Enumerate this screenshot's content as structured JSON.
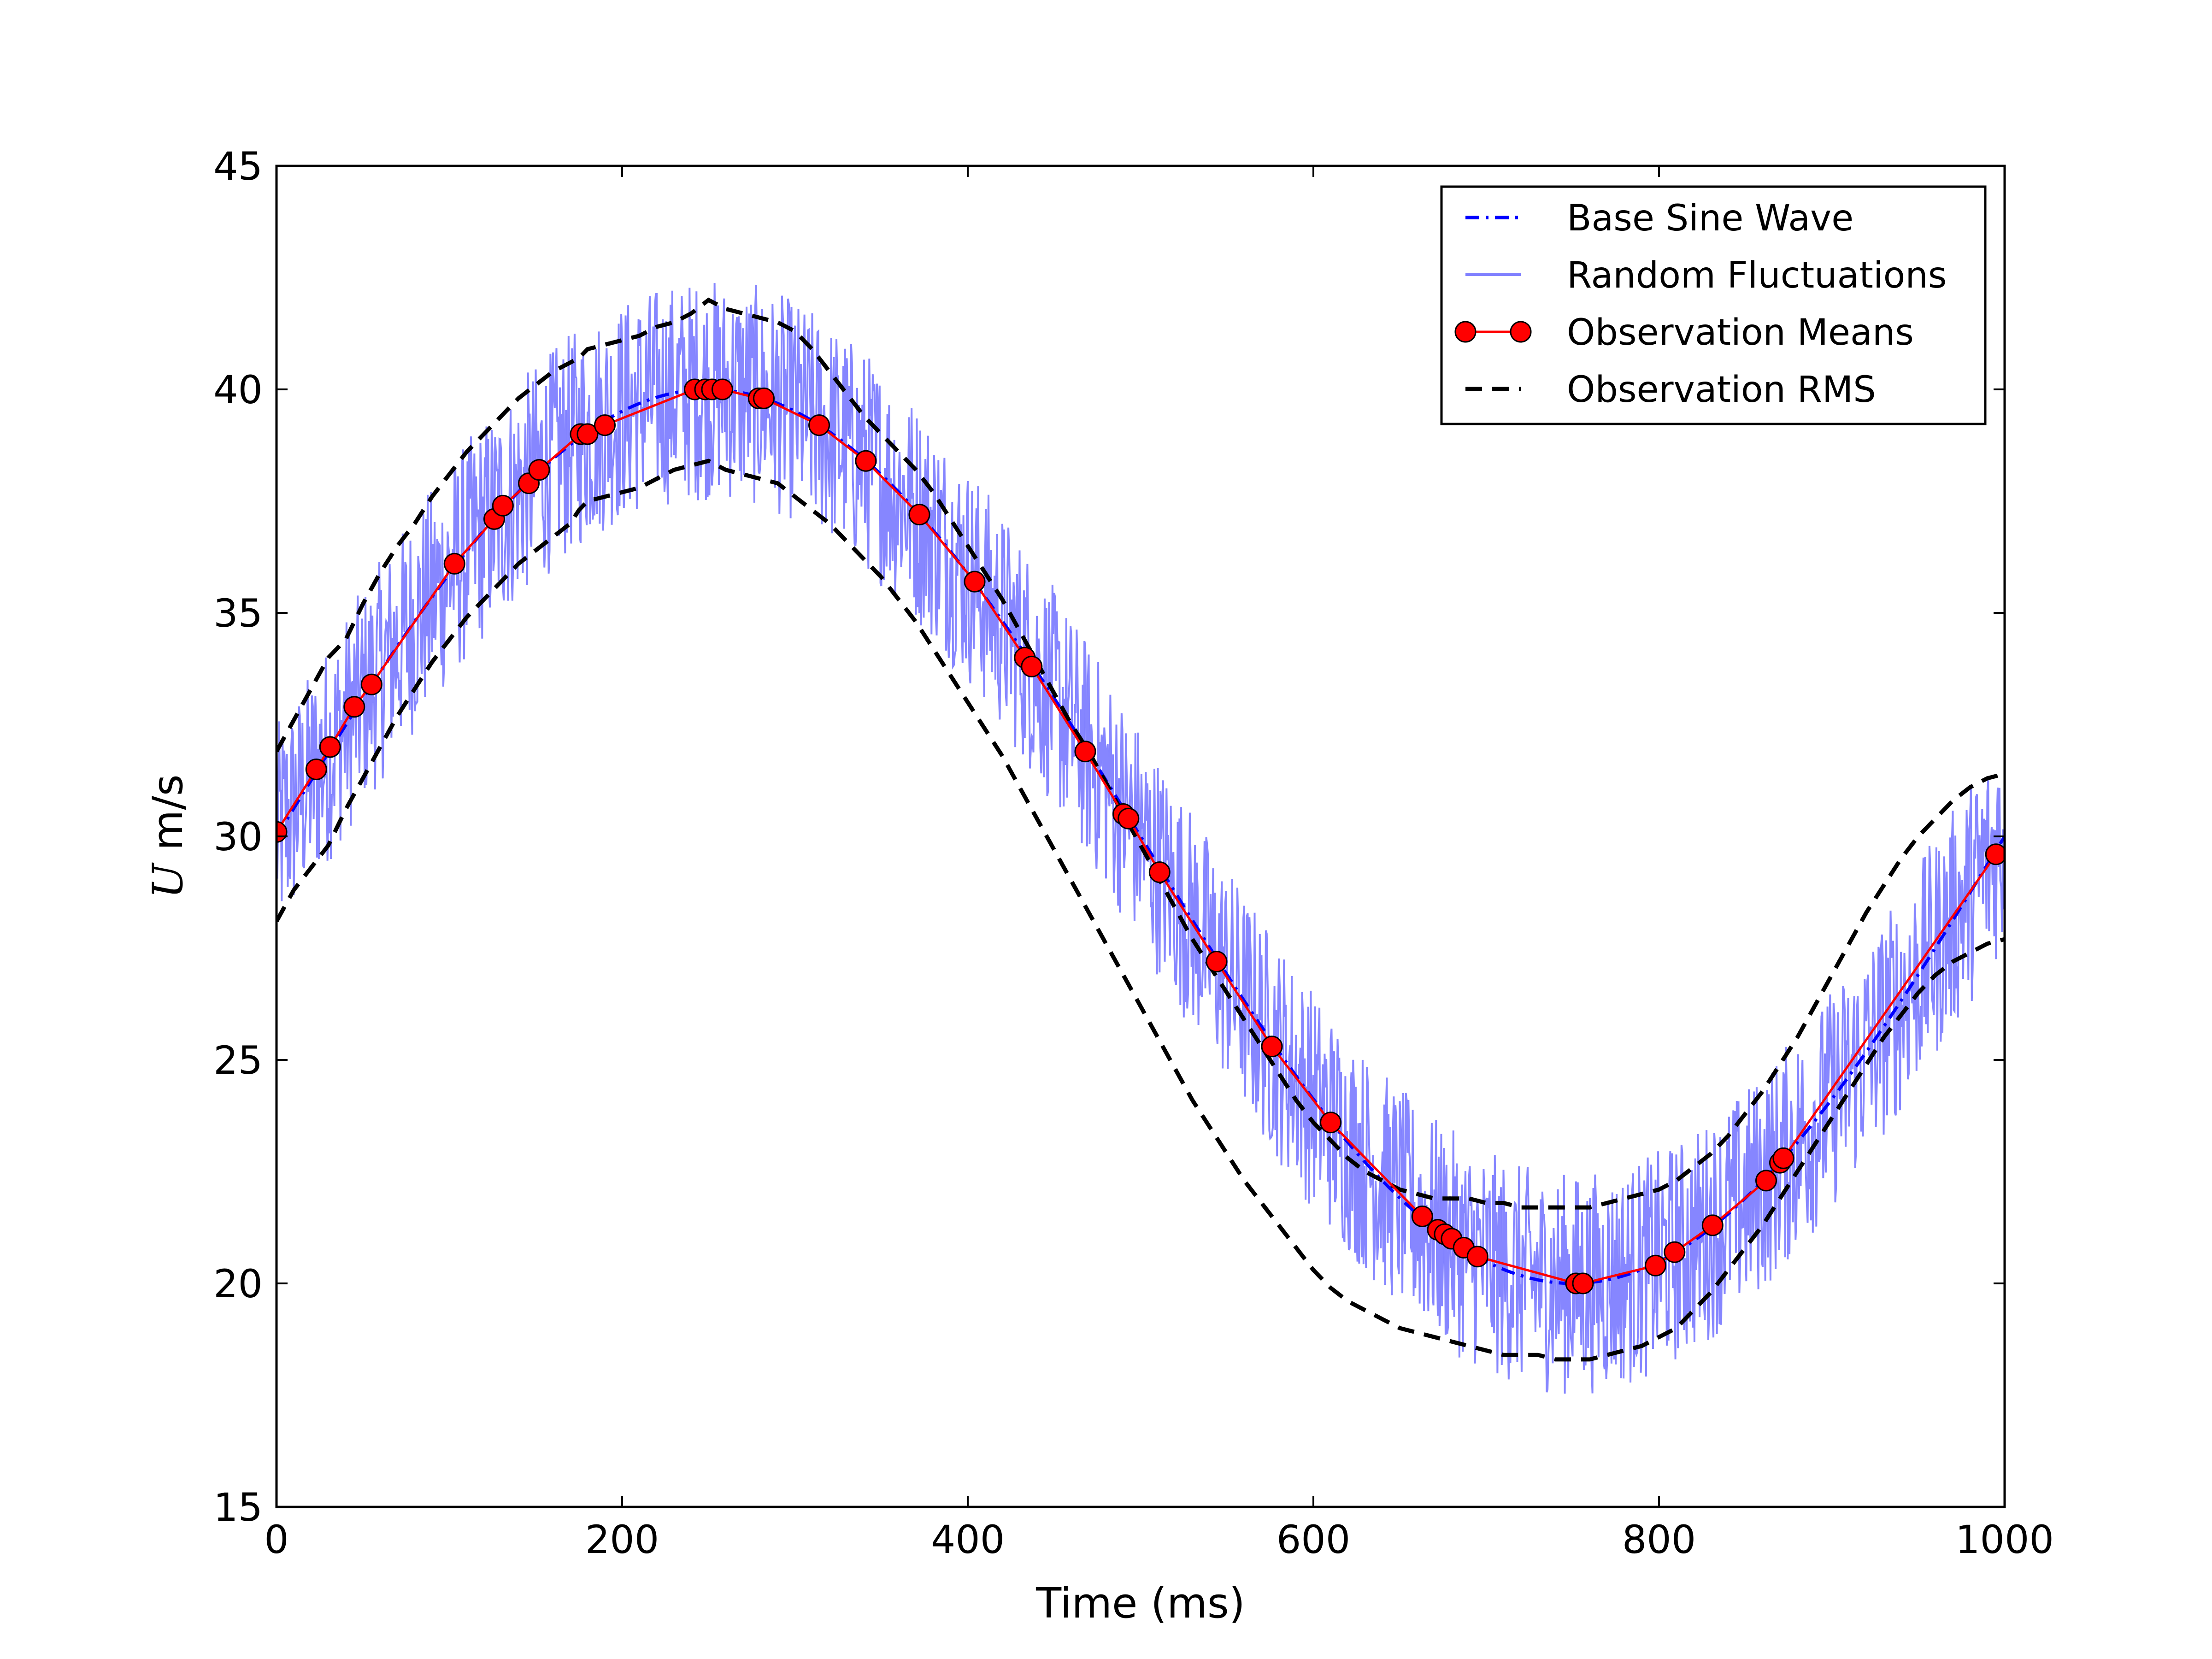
{
  "chart_data": {
    "type": "line",
    "title": "",
    "xlabel": "Time (ms)",
    "ylabel": {
      "symbol": "U",
      "unit": " m/s"
    },
    "xlim": [
      0,
      1000
    ],
    "ylim": [
      15,
      45
    ],
    "xticks": [
      0,
      200,
      400,
      600,
      800,
      1000
    ],
    "yticks": [
      15,
      20,
      25,
      30,
      35,
      40,
      45
    ],
    "grid": false,
    "legend_position": "top-right",
    "series": [
      {
        "name": "Base Sine Wave",
        "kind": "dash-dot",
        "color": "#0000ff",
        "formula": "30 + 10*sin(2*pi*t/1000)"
      },
      {
        "name": "Random Fluctuations",
        "kind": "line",
        "color": "#8080ff",
        "amplitude": 2.5
      },
      {
        "name": "Observation Means",
        "kind": "line-marker",
        "color": "#ff0000",
        "marker": "circle",
        "x": [
          0,
          23,
          31,
          45,
          55,
          103,
          126,
          131,
          146,
          152,
          176,
          180,
          190,
          242,
          248,
          252,
          258,
          279,
          282,
          314,
          341,
          372,
          404,
          433,
          437,
          468,
          490,
          493,
          511,
          544,
          576,
          610,
          663,
          672,
          676,
          680,
          687,
          695,
          752,
          756,
          798,
          809,
          831,
          862,
          870,
          872,
          995
        ],
        "y": [
          30.1,
          31.5,
          32.0,
          32.9,
          33.4,
          36.1,
          37.1,
          37.4,
          37.9,
          38.2,
          39.0,
          39.0,
          39.2,
          40.0,
          40.0,
          40.0,
          40.0,
          39.8,
          39.8,
          39.2,
          38.4,
          37.2,
          35.7,
          34.0,
          33.8,
          31.9,
          30.5,
          30.4,
          29.2,
          27.2,
          25.3,
          23.6,
          21.5,
          21.2,
          21.1,
          21.0,
          20.8,
          20.6,
          20.0,
          20.0,
          20.4,
          20.7,
          21.3,
          22.3,
          22.7,
          22.8,
          29.6
        ]
      },
      {
        "name": "Observation RMS",
        "kind": "dashed",
        "color": "#000000",
        "x": [
          0,
          10,
          20,
          30,
          40,
          50,
          60,
          70,
          80,
          90,
          100,
          110,
          120,
          130,
          140,
          150,
          160,
          170,
          175,
          180,
          190,
          200,
          210,
          220,
          230,
          240,
          250,
          260,
          270,
          280,
          290,
          300,
          310,
          320,
          330,
          340,
          350,
          360,
          370,
          380,
          390,
          400,
          410,
          420,
          430,
          440,
          450,
          460,
          470,
          480,
          490,
          500,
          510,
          520,
          530,
          540,
          550,
          560,
          570,
          580,
          590,
          600,
          610,
          620,
          630,
          640,
          650,
          660,
          670,
          680,
          690,
          700,
          710,
          720,
          730,
          740,
          750,
          760,
          770,
          780,
          790,
          800,
          810,
          820,
          830,
          840,
          850,
          860,
          870,
          880,
          890,
          900,
          910,
          920,
          930,
          940,
          950,
          960,
          970,
          980,
          990,
          1000
        ],
        "upper": [
          31.9,
          32.6,
          33.3,
          34.0,
          34.4,
          35.2,
          35.9,
          36.5,
          37.0,
          37.6,
          38.1,
          38.6,
          39.0,
          39.4,
          39.8,
          40.1,
          40.4,
          40.6,
          40.7,
          40.9,
          41.0,
          41.1,
          41.2,
          41.4,
          41.5,
          41.7,
          42.0,
          41.8,
          41.7,
          41.6,
          41.5,
          41.3,
          40.9,
          40.4,
          39.9,
          39.4,
          39.0,
          38.6,
          38.2,
          37.7,
          37.1,
          36.5,
          35.9,
          35.3,
          34.6,
          33.9,
          33.2,
          32.5,
          31.9,
          31.2,
          30.5,
          29.8,
          29.1,
          28.4,
          27.7,
          27.1,
          26.5,
          25.9,
          25.3,
          24.7,
          24.1,
          23.6,
          23.2,
          22.8,
          22.5,
          22.3,
          22.1,
          22.0,
          21.9,
          21.9,
          21.9,
          21.8,
          21.8,
          21.7,
          21.7,
          21.7,
          21.7,
          21.7,
          21.8,
          21.9,
          22.0,
          22.1,
          22.3,
          22.6,
          22.9,
          23.3,
          23.8,
          24.3,
          24.9,
          25.5,
          26.2,
          26.9,
          27.6,
          28.3,
          28.9,
          29.5,
          30.0,
          30.4,
          30.8,
          31.1,
          31.3,
          31.4
        ],
        "lower": [
          28.1,
          28.8,
          29.3,
          29.8,
          30.6,
          31.3,
          32.0,
          32.7,
          33.3,
          33.9,
          34.4,
          34.9,
          35.3,
          35.7,
          36.1,
          36.4,
          36.7,
          37.0,
          37.3,
          37.5,
          37.6,
          37.7,
          37.8,
          38.0,
          38.2,
          38.3,
          38.4,
          38.2,
          38.1,
          38.0,
          37.9,
          37.6,
          37.3,
          37.0,
          36.6,
          36.2,
          35.8,
          35.3,
          34.8,
          34.2,
          33.6,
          33.0,
          32.4,
          31.8,
          31.1,
          30.4,
          29.7,
          29.0,
          28.3,
          27.6,
          26.9,
          26.2,
          25.5,
          24.8,
          24.1,
          23.5,
          22.9,
          22.3,
          21.8,
          21.3,
          20.8,
          20.3,
          19.9,
          19.6,
          19.4,
          19.2,
          19.0,
          18.9,
          18.8,
          18.7,
          18.6,
          18.5,
          18.4,
          18.4,
          18.4,
          18.3,
          18.3,
          18.3,
          18.4,
          18.5,
          18.6,
          18.8,
          19.0,
          19.4,
          19.8,
          20.3,
          20.8,
          21.3,
          21.9,
          22.5,
          23.1,
          23.7,
          24.3,
          24.9,
          25.5,
          26.0,
          26.5,
          26.9,
          27.2,
          27.4,
          27.6,
          27.7
        ]
      }
    ]
  },
  "colors": {
    "frame": "#000000",
    "background": "#ffffff"
  }
}
